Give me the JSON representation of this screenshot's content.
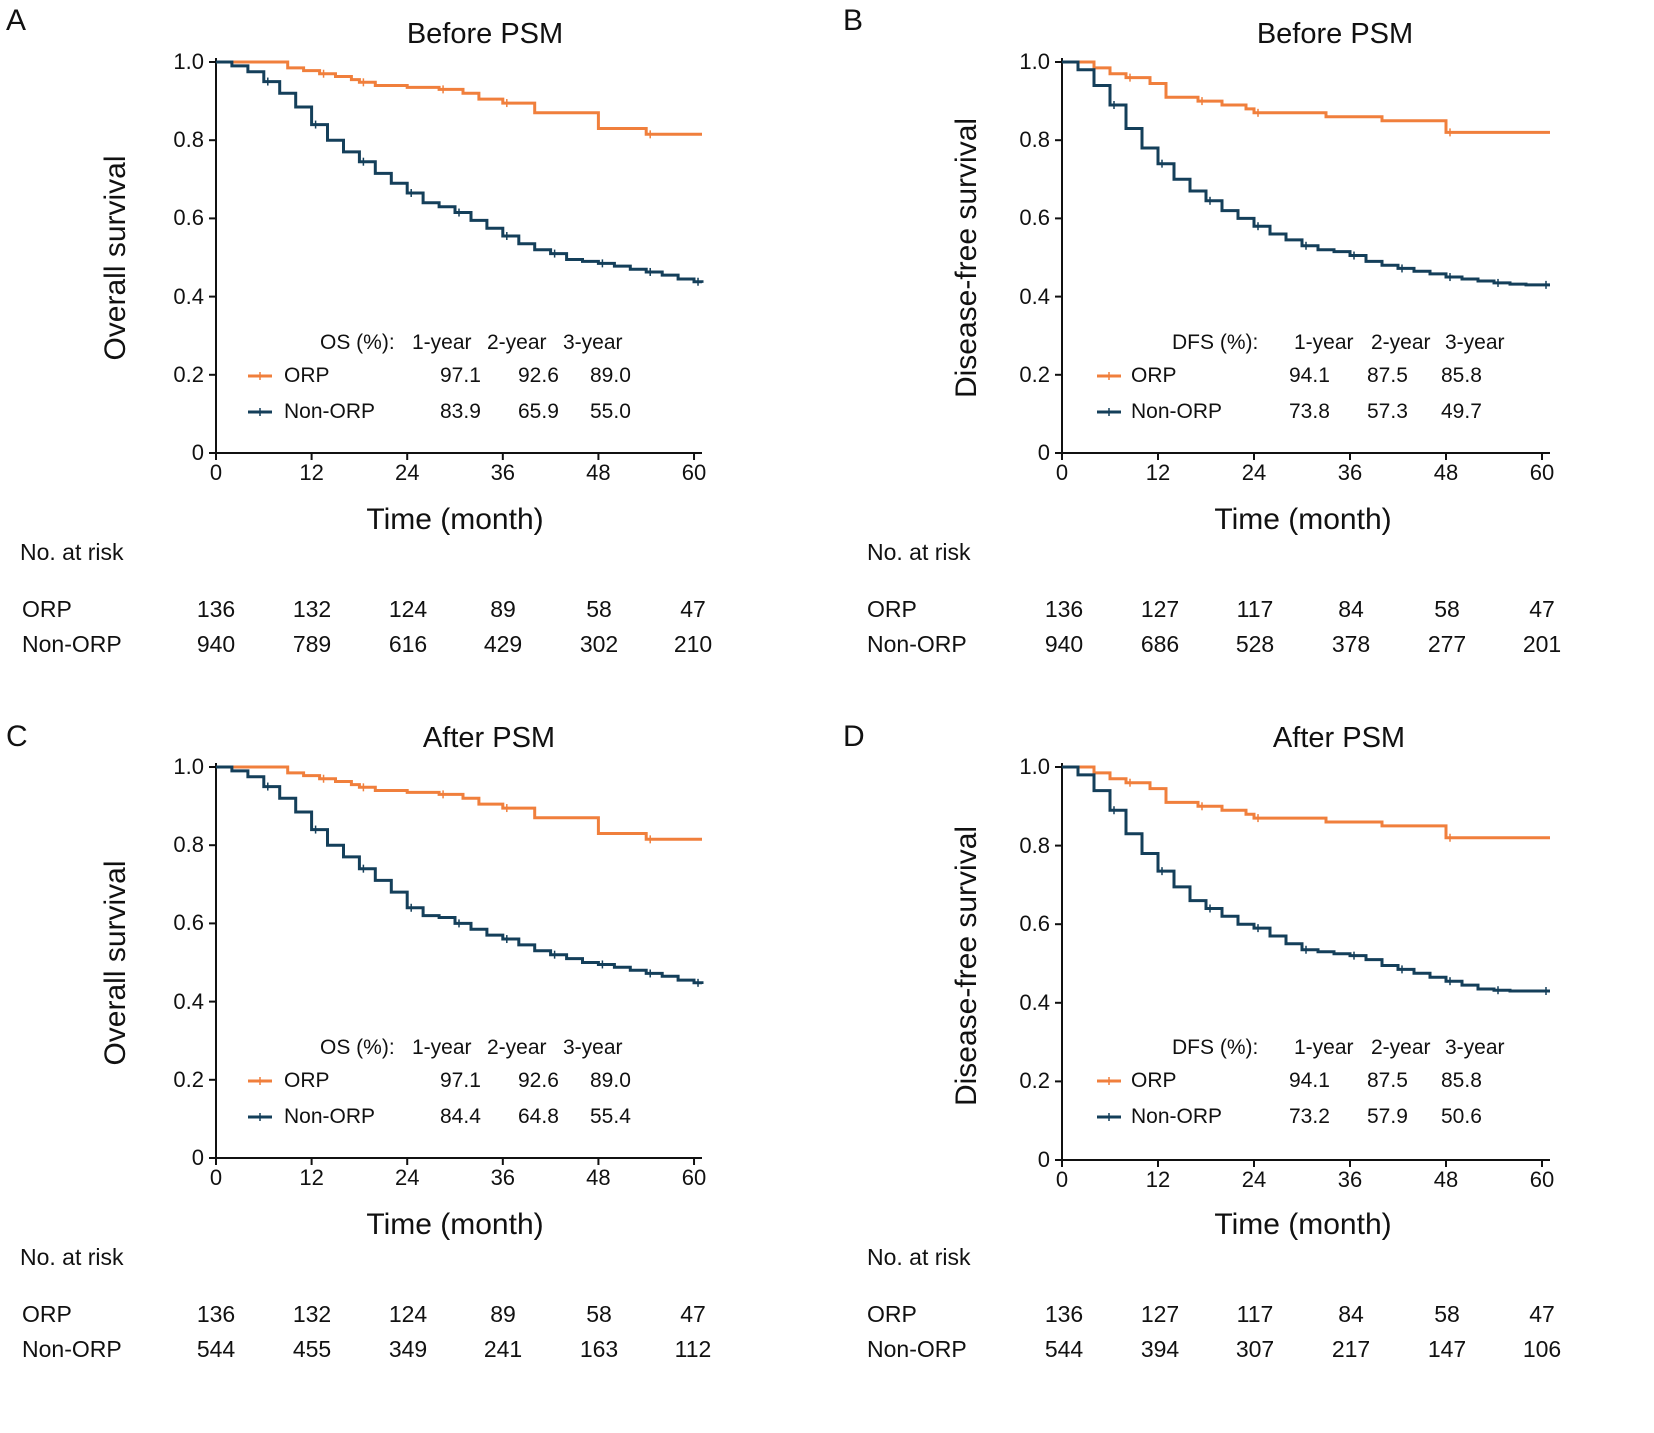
{
  "colors": {
    "orp": "#f07f3c",
    "non_orp": "#143f5a",
    "axis": "#111111"
  },
  "risk_title": "No. at risk",
  "xlabel": "Time (month)",
  "chart_data": [
    {
      "type": "line",
      "panel": "A",
      "title": "Before PSM",
      "xlabel": "Time (month)",
      "ylabel": "Overall survival",
      "xlim": [
        0,
        61
      ],
      "ylim": [
        0,
        1.0
      ],
      "xticks": [
        "0",
        "12",
        "24",
        "36",
        "48",
        "60"
      ],
      "yticks": [
        "0",
        "0.2",
        "0.4",
        "0.6",
        "0.8",
        "1.0"
      ],
      "legend_header": [
        "OS (%):",
        "1-year",
        "2-year",
        "3-year"
      ],
      "series": [
        {
          "name": "ORP",
          "color": "#f07f3c",
          "summary": [
            "97.1",
            "92.6",
            "89.0"
          ],
          "x": [
            0,
            9,
            11,
            13,
            15,
            17,
            18,
            20,
            24,
            28,
            31,
            33,
            36,
            40,
            48,
            54,
            61
          ],
          "y": [
            1.0,
            0.985,
            0.978,
            0.97,
            0.963,
            0.955,
            0.948,
            0.94,
            0.935,
            0.93,
            0.92,
            0.905,
            0.895,
            0.87,
            0.83,
            0.815,
            0.815
          ]
        },
        {
          "name": "Non-ORP",
          "color": "#143f5a",
          "summary": [
            "83.9",
            "65.9",
            "55.0"
          ],
          "x": [
            0,
            2,
            4,
            6,
            8,
            10,
            12,
            14,
            16,
            18,
            20,
            22,
            24,
            26,
            28,
            30,
            32,
            34,
            36,
            38,
            40,
            42,
            44,
            46,
            48,
            50,
            52,
            54,
            56,
            58,
            60,
            61
          ],
          "y": [
            1.0,
            0.99,
            0.975,
            0.95,
            0.92,
            0.885,
            0.84,
            0.8,
            0.77,
            0.745,
            0.715,
            0.69,
            0.665,
            0.64,
            0.63,
            0.615,
            0.595,
            0.575,
            0.555,
            0.535,
            0.52,
            0.51,
            0.495,
            0.49,
            0.485,
            0.478,
            0.47,
            0.463,
            0.455,
            0.445,
            0.438,
            0.435
          ]
        }
      ],
      "risk_table": {
        "ORP": [
          "136",
          "132",
          "124",
          "89",
          "58",
          "47"
        ],
        "Non-ORP": [
          "940",
          "789",
          "616",
          "429",
          "302",
          "210"
        ]
      }
    },
    {
      "type": "line",
      "panel": "B",
      "title": "Before PSM",
      "xlabel": "Time (month)",
      "ylabel": "Disease-free survival",
      "xlim": [
        0,
        61
      ],
      "ylim": [
        0,
        1.0
      ],
      "xticks": [
        "0",
        "12",
        "24",
        "36",
        "48",
        "60"
      ],
      "yticks": [
        "0",
        "0.2",
        "0.4",
        "0.6",
        "0.8",
        "1.0"
      ],
      "legend_header": [
        "DFS (%):",
        "1-year",
        "2-year",
        "3-year"
      ],
      "series": [
        {
          "name": "ORP",
          "color": "#f07f3c",
          "summary": [
            "94.1",
            "87.5",
            "85.8"
          ],
          "x": [
            0,
            4,
            6,
            8,
            11,
            13,
            17,
            20,
            23,
            24,
            33,
            40,
            48,
            61
          ],
          "y": [
            1.0,
            0.985,
            0.97,
            0.96,
            0.945,
            0.91,
            0.9,
            0.89,
            0.88,
            0.87,
            0.86,
            0.85,
            0.82,
            0.82
          ]
        },
        {
          "name": "Non-ORP",
          "color": "#143f5a",
          "summary": [
            "73.8",
            "57.3",
            "49.7"
          ],
          "x": [
            0,
            2,
            4,
            6,
            8,
            10,
            12,
            14,
            16,
            18,
            20,
            22,
            24,
            26,
            28,
            30,
            32,
            34,
            36,
            38,
            40,
            42,
            44,
            46,
            48,
            50,
            52,
            54,
            56,
            58,
            60,
            61
          ],
          "y": [
            1.0,
            0.98,
            0.94,
            0.89,
            0.83,
            0.78,
            0.74,
            0.7,
            0.67,
            0.645,
            0.62,
            0.6,
            0.58,
            0.56,
            0.545,
            0.53,
            0.52,
            0.515,
            0.505,
            0.49,
            0.48,
            0.472,
            0.465,
            0.458,
            0.45,
            0.445,
            0.44,
            0.435,
            0.432,
            0.43,
            0.43,
            0.43
          ]
        }
      ],
      "risk_table": {
        "ORP": [
          "136",
          "127",
          "117",
          "84",
          "58",
          "47"
        ],
        "Non-ORP": [
          "940",
          "686",
          "528",
          "378",
          "277",
          "201"
        ]
      }
    },
    {
      "type": "line",
      "panel": "C",
      "title": "After PSM",
      "xlabel": "Time (month)",
      "ylabel": "Overall survival",
      "xlim": [
        0,
        61
      ],
      "ylim": [
        0,
        1.0
      ],
      "xticks": [
        "0",
        "12",
        "24",
        "36",
        "48",
        "60"
      ],
      "yticks": [
        "0",
        "0.2",
        "0.4",
        "0.6",
        "0.8",
        "1.0"
      ],
      "legend_header": [
        "OS (%):",
        "1-year",
        "2-year",
        "3-year"
      ],
      "series": [
        {
          "name": "ORP",
          "color": "#f07f3c",
          "summary": [
            "97.1",
            "92.6",
            "89.0"
          ],
          "x": [
            0,
            9,
            11,
            13,
            15,
            17,
            18,
            20,
            24,
            28,
            31,
            33,
            36,
            40,
            48,
            54,
            61
          ],
          "y": [
            1.0,
            0.985,
            0.978,
            0.97,
            0.963,
            0.955,
            0.948,
            0.94,
            0.935,
            0.93,
            0.92,
            0.905,
            0.895,
            0.87,
            0.83,
            0.815,
            0.815
          ]
        },
        {
          "name": "Non-ORP",
          "color": "#143f5a",
          "summary": [
            "84.4",
            "64.8",
            "55.4"
          ],
          "x": [
            0,
            2,
            4,
            6,
            8,
            10,
            12,
            14,
            16,
            18,
            20,
            22,
            24,
            26,
            28,
            30,
            32,
            34,
            36,
            38,
            40,
            42,
            44,
            46,
            48,
            50,
            52,
            54,
            56,
            58,
            60,
            61
          ],
          "y": [
            1.0,
            0.99,
            0.975,
            0.95,
            0.92,
            0.885,
            0.84,
            0.8,
            0.77,
            0.74,
            0.71,
            0.68,
            0.64,
            0.62,
            0.615,
            0.6,
            0.585,
            0.57,
            0.56,
            0.545,
            0.53,
            0.52,
            0.51,
            0.5,
            0.495,
            0.488,
            0.48,
            0.472,
            0.465,
            0.455,
            0.448,
            0.445
          ]
        }
      ],
      "risk_table": {
        "ORP": [
          "136",
          "132",
          "124",
          "89",
          "58",
          "47"
        ],
        "Non-ORP": [
          "544",
          "455",
          "349",
          "241",
          "163",
          "112"
        ]
      }
    },
    {
      "type": "line",
      "panel": "D",
      "title": "After PSM",
      "xlabel": "Time (month)",
      "ylabel": "Disease-free survival",
      "xlim": [
        0,
        61
      ],
      "ylim": [
        0,
        1.0
      ],
      "xticks": [
        "0",
        "12",
        "24",
        "36",
        "48",
        "60"
      ],
      "yticks": [
        "0",
        "0.2",
        "0.4",
        "0.6",
        "0.8",
        "1.0"
      ],
      "legend_header": [
        "DFS (%):",
        "1-year",
        "2-year",
        "3-year"
      ],
      "series": [
        {
          "name": "ORP",
          "color": "#f07f3c",
          "summary": [
            "94.1",
            "87.5",
            "85.8"
          ],
          "x": [
            0,
            4,
            6,
            8,
            11,
            13,
            17,
            20,
            23,
            24,
            33,
            40,
            48,
            61
          ],
          "y": [
            1.0,
            0.985,
            0.97,
            0.96,
            0.945,
            0.91,
            0.9,
            0.89,
            0.88,
            0.87,
            0.86,
            0.85,
            0.82,
            0.82
          ]
        },
        {
          "name": "Non-ORP",
          "color": "#143f5a",
          "summary": [
            "73.2",
            "57.9",
            "50.6"
          ],
          "x": [
            0,
            2,
            4,
            6,
            8,
            10,
            12,
            14,
            16,
            18,
            20,
            22,
            24,
            26,
            28,
            30,
            32,
            34,
            36,
            38,
            40,
            42,
            44,
            46,
            48,
            50,
            52,
            54,
            56,
            58,
            60,
            61
          ],
          "y": [
            1.0,
            0.98,
            0.94,
            0.89,
            0.83,
            0.78,
            0.735,
            0.695,
            0.66,
            0.64,
            0.62,
            0.6,
            0.59,
            0.57,
            0.55,
            0.535,
            0.53,
            0.525,
            0.52,
            0.51,
            0.495,
            0.485,
            0.475,
            0.465,
            0.455,
            0.445,
            0.435,
            0.432,
            0.43,
            0.43,
            0.43,
            0.43
          ]
        }
      ],
      "risk_table": {
        "ORP": [
          "136",
          "127",
          "117",
          "84",
          "58",
          "47"
        ],
        "Non-ORP": [
          "544",
          "394",
          "307",
          "217",
          "147",
          "106"
        ]
      }
    }
  ]
}
